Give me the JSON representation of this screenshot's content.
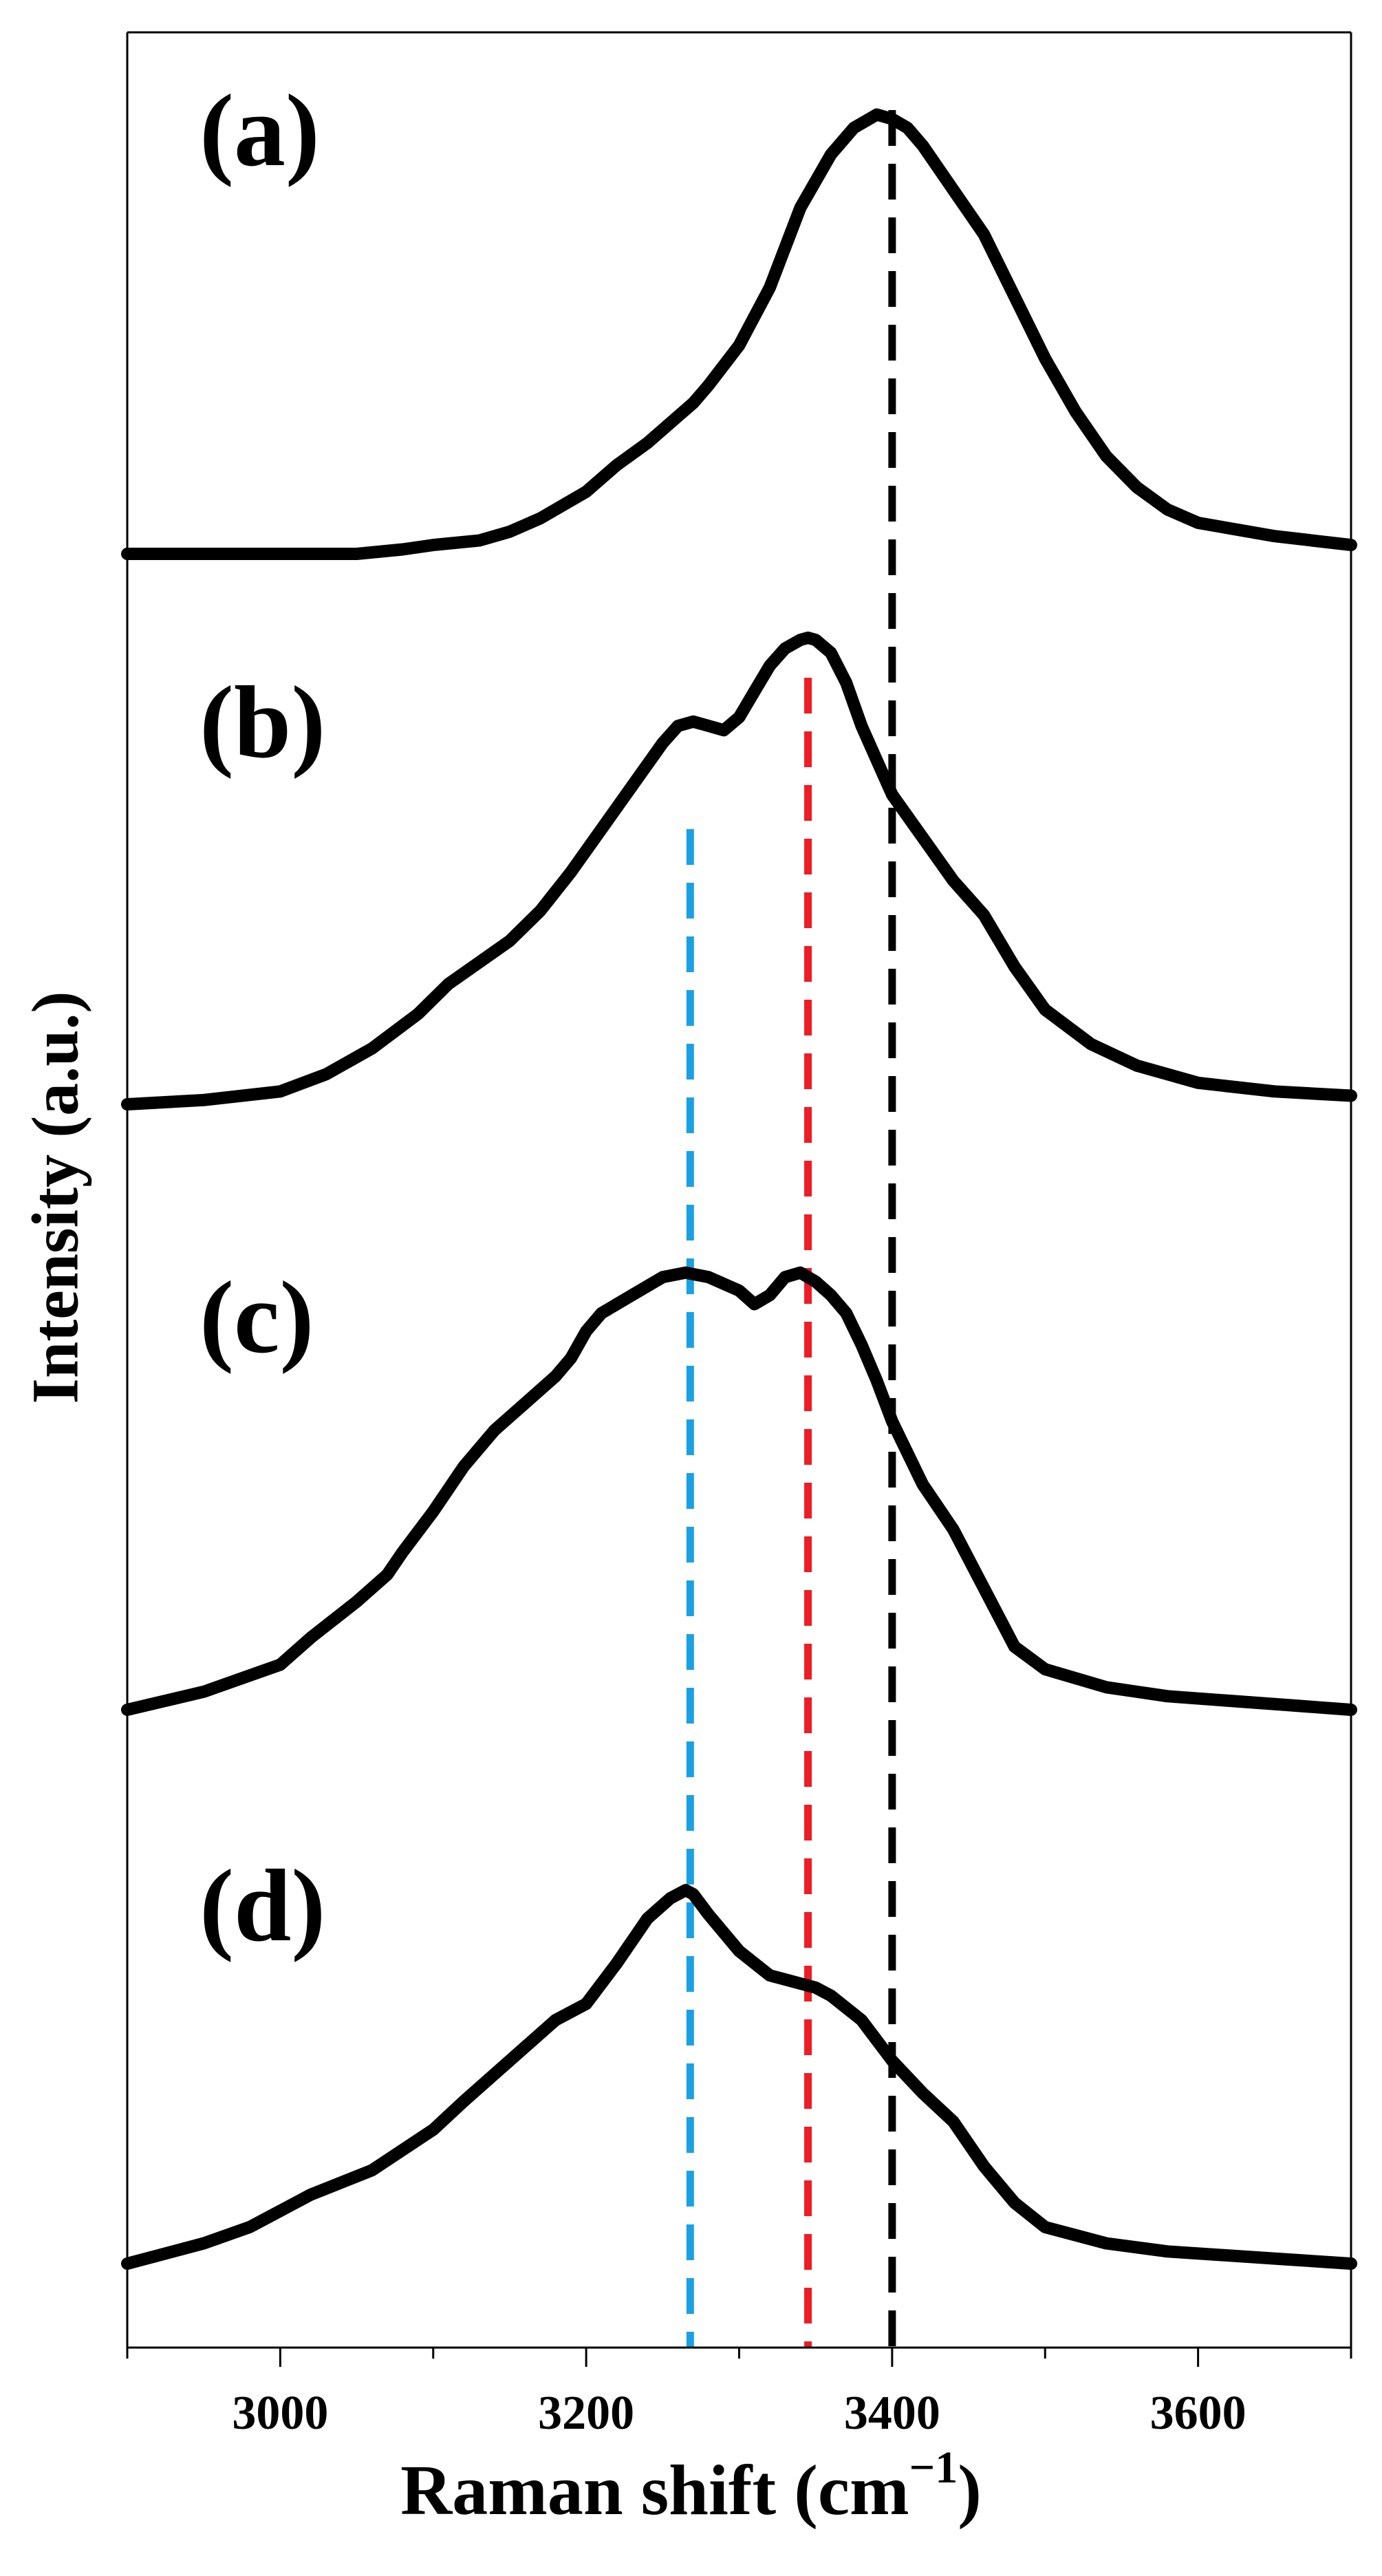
{
  "chart_data": {
    "type": "line",
    "xlabel": "Raman shift",
    "xlabel_unit_base": "cm",
    "xlabel_unit_exp": "−1",
    "ylabel": "Intensity (a.u.)",
    "xlim": [
      2900,
      3700
    ],
    "xticks": [
      3000,
      3200,
      3400,
      3600
    ],
    "xtick_labels": [
      "3000",
      "3200",
      "3400",
      "3600"
    ],
    "minor_xticks": [
      2900,
      3100,
      3300,
      3500,
      3700
    ],
    "yticks_shown": false,
    "grid": false,
    "series": [
      {
        "name": "(a)",
        "x": [
          2900,
          2950,
          3000,
          3050,
          3080,
          3100,
          3130,
          3150,
          3170,
          3180,
          3200,
          3220,
          3240,
          3260,
          3270,
          3280,
          3300,
          3320,
          3340,
          3360,
          3375,
          3390,
          3400,
          3410,
          3420,
          3440,
          3460,
          3480,
          3500,
          3520,
          3540,
          3560,
          3580,
          3600,
          3650,
          3700
        ],
        "y": [
          0,
          0,
          0,
          0,
          0.01,
          0.02,
          0.03,
          0.05,
          0.08,
          0.1,
          0.14,
          0.2,
          0.25,
          0.31,
          0.34,
          0.38,
          0.47,
          0.6,
          0.78,
          0.9,
          0.96,
          0.99,
          0.98,
          0.96,
          0.92,
          0.82,
          0.72,
          0.58,
          0.44,
          0.32,
          0.22,
          0.15,
          0.1,
          0.07,
          0.04,
          0.02
        ]
      },
      {
        "name": "(b)",
        "x": [
          2900,
          2950,
          3000,
          3030,
          3060,
          3090,
          3110,
          3130,
          3150,
          3170,
          3190,
          3210,
          3230,
          3250,
          3260,
          3270,
          3280,
          3290,
          3300,
          3310,
          3320,
          3330,
          3340,
          3345,
          3350,
          3360,
          3370,
          3380,
          3390,
          3400,
          3420,
          3440,
          3450,
          3460,
          3480,
          3500,
          3530,
          3560,
          3600,
          3650,
          3700
        ],
        "y": [
          0,
          0.01,
          0.03,
          0.07,
          0.13,
          0.21,
          0.28,
          0.33,
          0.38,
          0.45,
          0.54,
          0.64,
          0.74,
          0.84,
          0.88,
          0.89,
          0.88,
          0.87,
          0.9,
          0.96,
          1.02,
          1.06,
          1.08,
          1.085,
          1.08,
          1.05,
          0.98,
          0.88,
          0.8,
          0.72,
          0.62,
          0.52,
          0.48,
          0.44,
          0.32,
          0.22,
          0.14,
          0.09,
          0.05,
          0.03,
          0.02
        ]
      },
      {
        "name": "(c)",
        "x": [
          2900,
          2950,
          3000,
          3020,
          3050,
          3070,
          3080,
          3100,
          3120,
          3140,
          3160,
          3180,
          3190,
          3200,
          3210,
          3230,
          3250,
          3265,
          3280,
          3300,
          3310,
          3320,
          3330,
          3340,
          3350,
          3360,
          3370,
          3380,
          3390,
          3400,
          3420,
          3440,
          3460,
          3480,
          3500,
          3540,
          3580,
          3620,
          3660,
          3700
        ],
        "y": [
          0,
          0.04,
          0.1,
          0.16,
          0.24,
          0.3,
          0.35,
          0.44,
          0.54,
          0.62,
          0.68,
          0.74,
          0.78,
          0.84,
          0.88,
          0.92,
          0.96,
          0.97,
          0.96,
          0.93,
          0.9,
          0.92,
          0.96,
          0.97,
          0.95,
          0.92,
          0.88,
          0.81,
          0.73,
          0.64,
          0.5,
          0.4,
          0.27,
          0.14,
          0.09,
          0.05,
          0.03,
          0.02,
          0.01,
          0
        ]
      },
      {
        "name": "(d)",
        "x": [
          2900,
          2950,
          2980,
          3000,
          3020,
          3060,
          3100,
          3120,
          3150,
          3180,
          3200,
          3220,
          3240,
          3255,
          3265,
          3270,
          3280,
          3300,
          3320,
          3340,
          3350,
          3360,
          3380,
          3400,
          3420,
          3440,
          3460,
          3480,
          3500,
          3540,
          3580,
          3620,
          3660,
          3700
        ],
        "y": [
          0,
          0.05,
          0.09,
          0.13,
          0.17,
          0.23,
          0.33,
          0.4,
          0.5,
          0.6,
          0.64,
          0.74,
          0.85,
          0.9,
          0.92,
          0.91,
          0.86,
          0.77,
          0.71,
          0.69,
          0.68,
          0.66,
          0.6,
          0.5,
          0.42,
          0.35,
          0.24,
          0.15,
          0.09,
          0.05,
          0.03,
          0.02,
          0.01,
          0
        ]
      }
    ],
    "reference_lines": [
      {
        "name": "black dashed line",
        "x": 3400,
        "color": "#000000"
      },
      {
        "name": "red dashed line",
        "x": 3345,
        "color": "#ee1c25"
      },
      {
        "name": "blue dashed line",
        "x": 3268,
        "color": "#1ba1e2"
      }
    ],
    "colors": {
      "series": "#000000",
      "axis": "#000000"
    }
  }
}
